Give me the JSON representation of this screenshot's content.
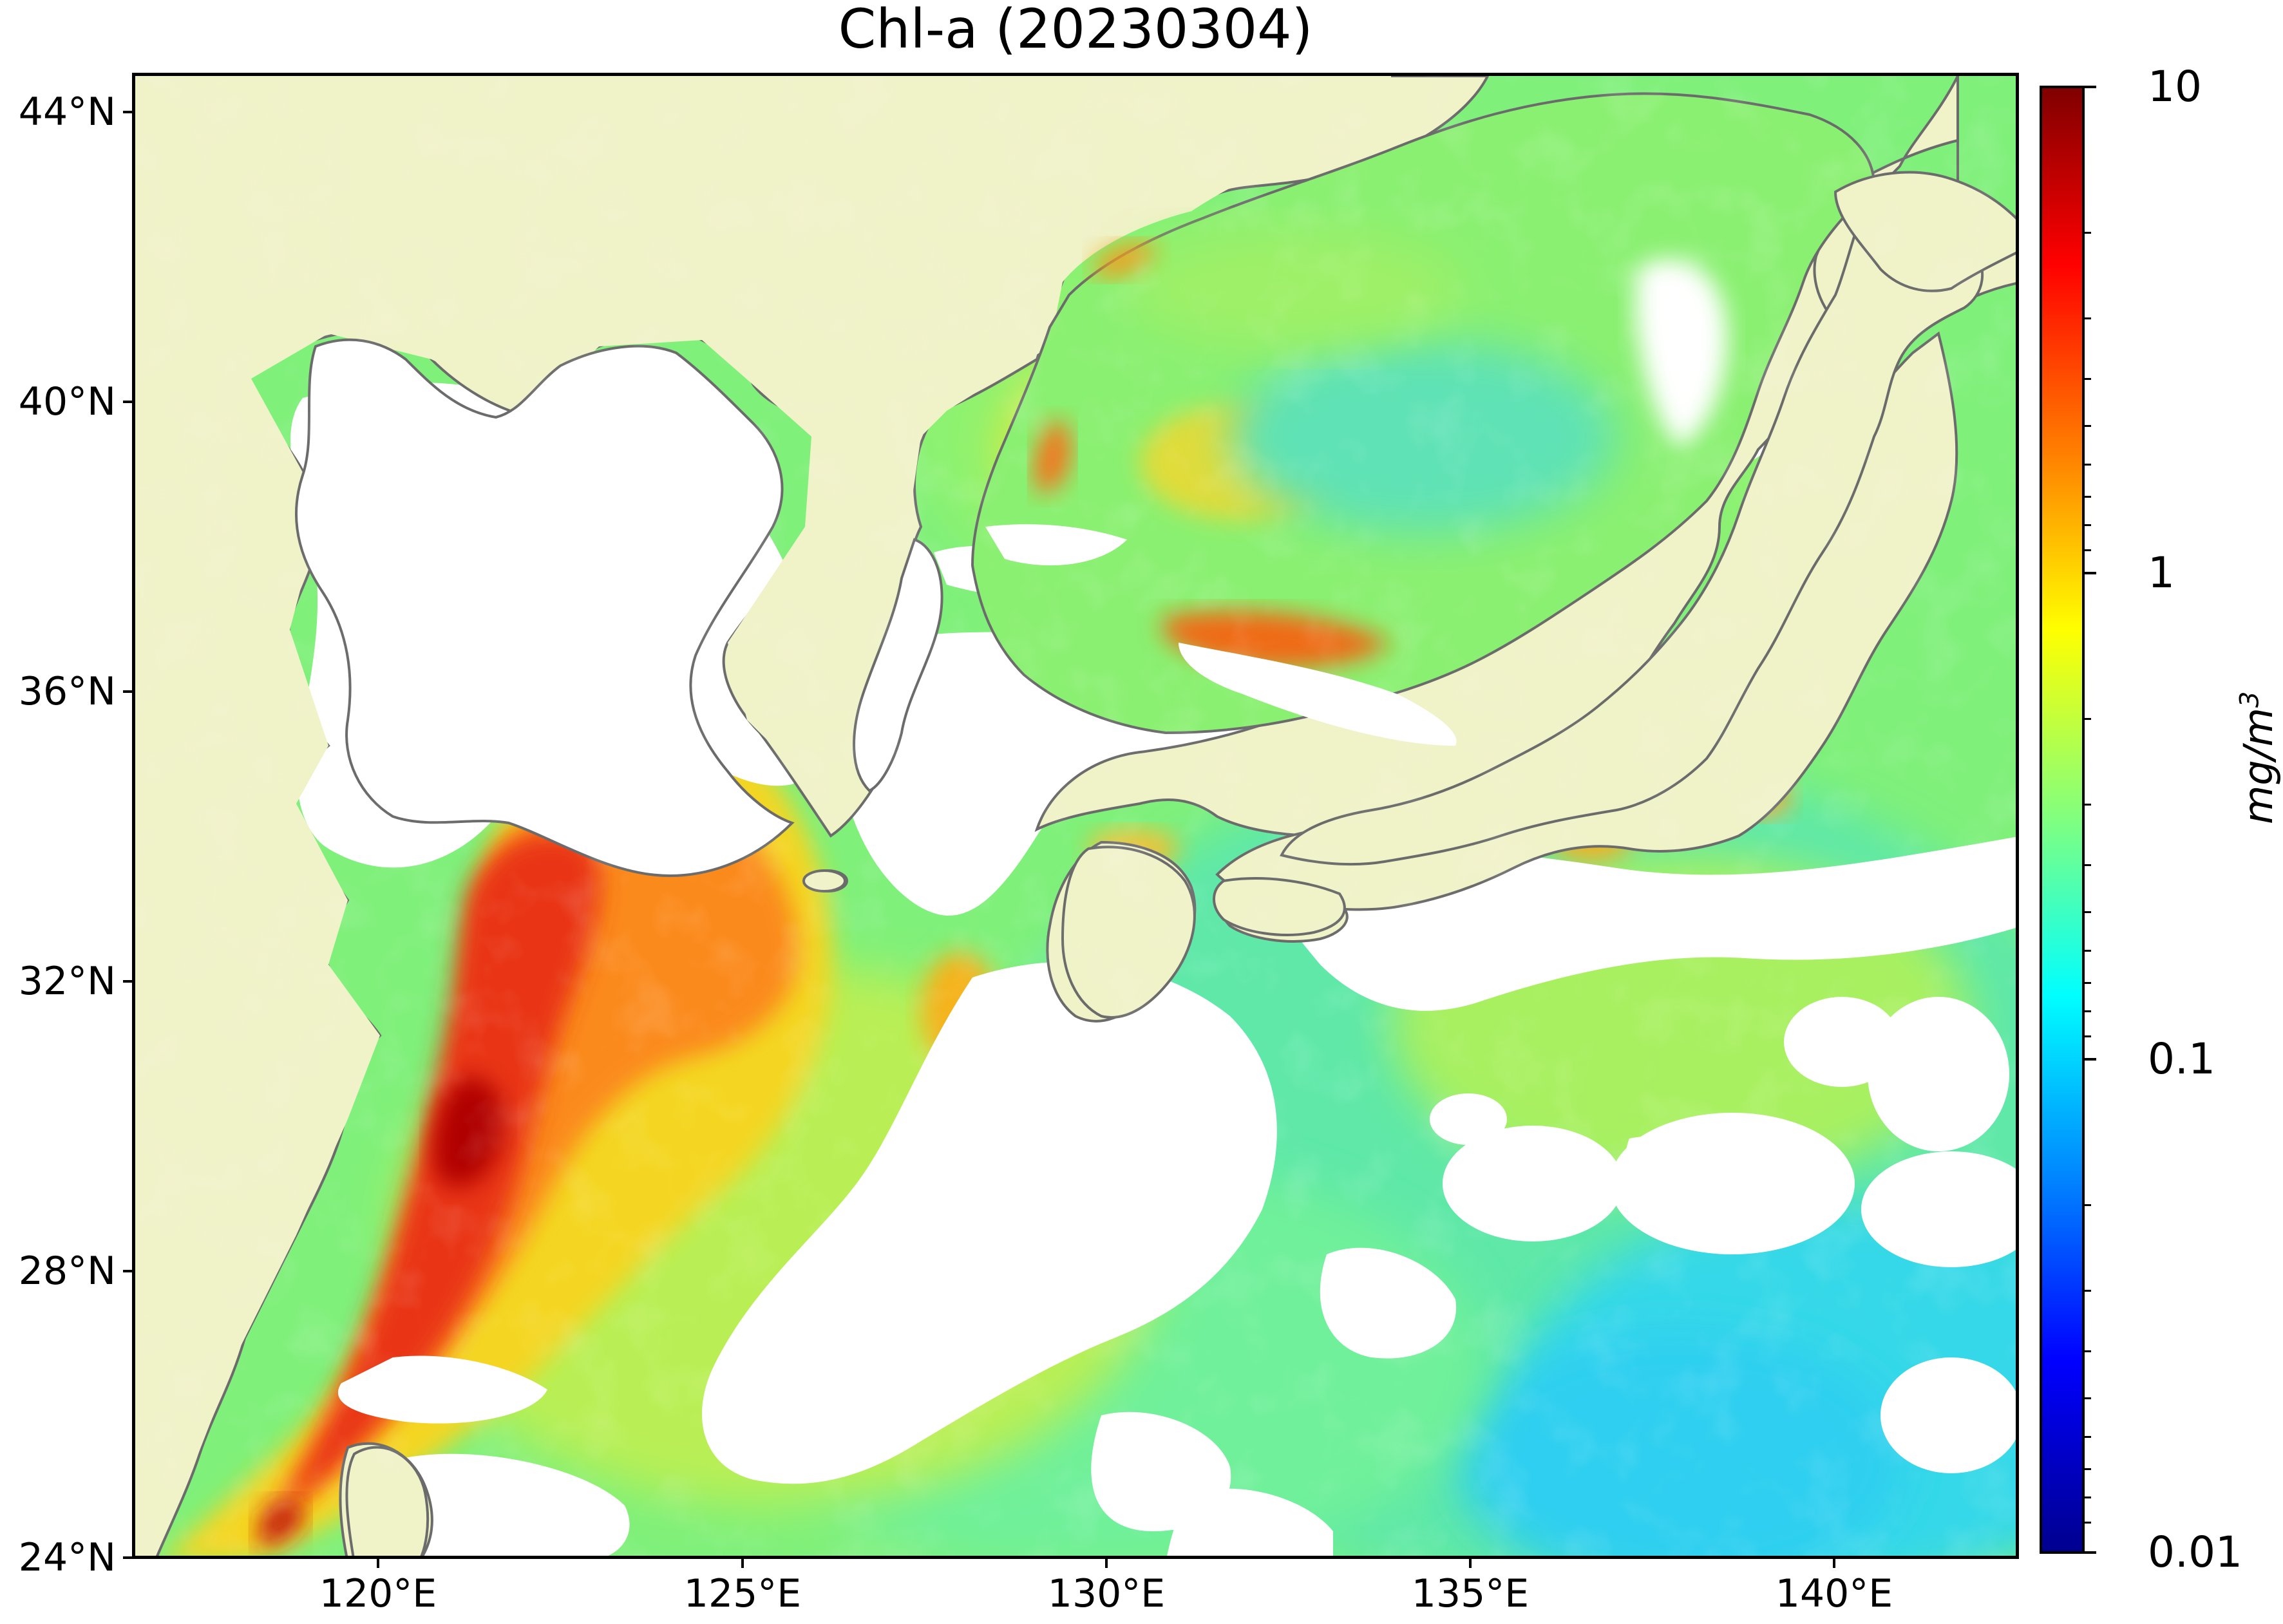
{
  "title": "Chl-a (20230304)",
  "latitude_labels": [
    "44°N",
    "40°N",
    "36°N",
    "32°N",
    "28°N",
    "24°N"
  ],
  "longitude_labels": [
    "120°E",
    "125°E",
    "130°E",
    "135°E",
    "140°E"
  ],
  "colorbar": {
    "labels": [
      "10",
      "1",
      "0.1",
      "0.01"
    ],
    "unit_base": "mg/m",
    "unit_exponent": "3",
    "scale": "log",
    "range": [
      0.01,
      10
    ],
    "colormap": "jet"
  },
  "colors": {
    "land": "#f0f2c8",
    "coastline": "#6b6b6b",
    "no_data": "#ffffff"
  },
  "chart_data": {
    "type": "heatmap",
    "title": "Chl-a (20230304)",
    "xlabel": "",
    "ylabel": "",
    "x_ticks": [
      120,
      125,
      130,
      135,
      140
    ],
    "y_ticks": [
      24,
      28,
      32,
      36,
      40,
      44
    ],
    "xlim": [
      116.8,
      143.0
    ],
    "ylim": [
      24.0,
      44.5
    ],
    "color_scale": "log",
    "value_range": [
      0.01,
      10
    ]
  }
}
